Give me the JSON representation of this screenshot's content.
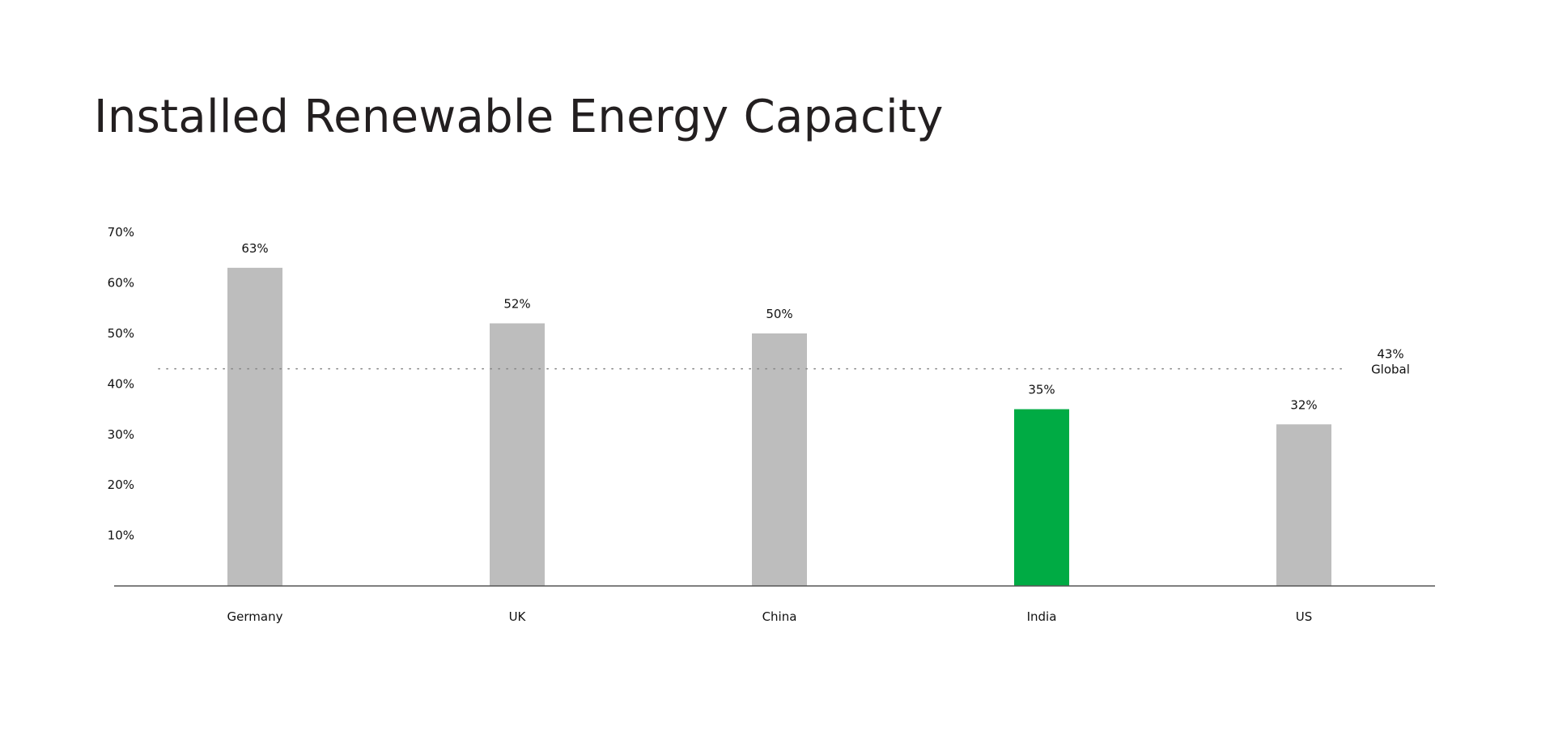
{
  "chart_data": {
    "type": "bar",
    "title": "Installed Renewable Energy Capacity",
    "xlabel": "",
    "ylabel": "",
    "categories": [
      "Germany",
      "UK",
      "China",
      "India",
      "US"
    ],
    "values": [
      63,
      52,
      50,
      35,
      32
    ],
    "value_labels": [
      "63%",
      "52%",
      "50%",
      "35%",
      "32%"
    ],
    "highlight": "India",
    "colors": {
      "bar": "#bdbdbd",
      "highlight": "#00ab44",
      "baseline": "#555555",
      "reference_line": "#888888"
    },
    "ylim": [
      0,
      70
    ],
    "yticks": [
      10,
      20,
      30,
      40,
      50,
      60,
      70
    ],
    "ytick_labels": [
      "10%",
      "20%",
      "30%",
      "40%",
      "50%",
      "60%",
      "70%"
    ],
    "grid": false,
    "reference_line": {
      "value": 43,
      "label_value": "43%",
      "label_name": "Global",
      "style": "dotted"
    }
  }
}
